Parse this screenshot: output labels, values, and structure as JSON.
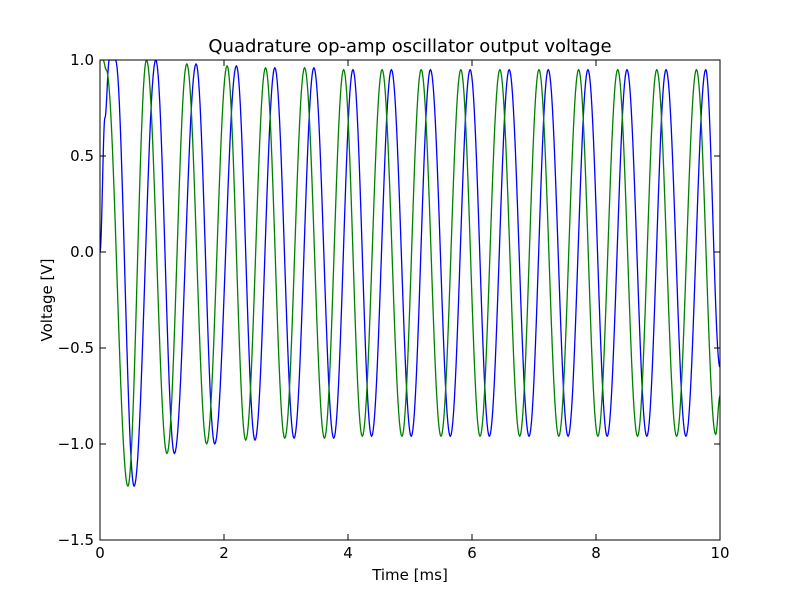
{
  "chart_data": {
    "type": "line",
    "title": "Quadrature op-amp oscillator output voltage",
    "xlabel": "Time [ms]",
    "ylabel": "Voltage [V]",
    "xlim": [
      0,
      10
    ],
    "ylim": [
      -1.5,
      1.0
    ],
    "x_ticks": [
      0,
      2,
      4,
      6,
      8,
      10
    ],
    "x_tick_labels": [
      "0",
      "2",
      "4",
      "6",
      "8",
      "10"
    ],
    "y_ticks": [
      1.0,
      0.5,
      0.0,
      -0.5,
      -1.0,
      -1.5
    ],
    "y_tick_labels": [
      "1.0",
      "0.5",
      "0.0",
      "−0.5",
      "−1.0",
      "−1.5"
    ],
    "grid": false,
    "legend": "none",
    "series": [
      {
        "color": "#0000ff",
        "x": [
          0.0,
          0.08,
          0.15,
          0.25,
          0.55,
          0.9,
          1.2,
          1.55,
          1.85,
          2.2,
          2.5,
          2.82,
          3.13,
          3.45,
          3.77,
          4.08,
          4.38,
          4.7,
          5.02,
          5.33,
          5.65,
          5.97,
          6.28,
          6.6,
          6.92,
          7.23,
          7.55,
          7.87,
          8.18,
          8.5,
          8.82,
          9.13,
          9.45,
          9.77,
          10.0
        ],
        "y": [
          0.0,
          0.7,
          1.0,
          1.0,
          -1.22,
          1.0,
          -1.05,
          0.98,
          -1.0,
          0.97,
          -0.98,
          0.96,
          -0.97,
          0.96,
          -0.97,
          0.95,
          -0.96,
          0.95,
          -0.96,
          0.95,
          -0.96,
          0.95,
          -0.96,
          0.95,
          -0.96,
          0.95,
          -0.96,
          0.95,
          -0.96,
          0.95,
          -0.96,
          0.95,
          -0.96,
          0.95,
          -0.6
        ]
      },
      {
        "color": "#008000",
        "x": [
          0.0,
          0.05,
          0.1,
          0.45,
          0.75,
          1.08,
          1.4,
          1.72,
          2.05,
          2.35,
          2.67,
          2.98,
          3.3,
          3.62,
          3.93,
          4.23,
          4.55,
          4.87,
          5.18,
          5.5,
          5.82,
          6.13,
          6.45,
          6.77,
          7.08,
          7.4,
          7.72,
          8.03,
          8.35,
          8.67,
          8.98,
          9.3,
          9.62,
          9.93,
          10.0
        ],
        "y": [
          1.0,
          1.0,
          0.95,
          -1.22,
          1.0,
          -1.05,
          0.98,
          -1.0,
          0.97,
          -0.98,
          0.96,
          -0.97,
          0.96,
          -0.97,
          0.95,
          -0.96,
          0.95,
          -0.96,
          0.95,
          -0.96,
          0.95,
          -0.96,
          0.95,
          -0.96,
          0.95,
          -0.96,
          0.95,
          -0.96,
          0.95,
          -0.96,
          0.95,
          -0.96,
          0.95,
          -0.95,
          -0.75
        ]
      }
    ]
  }
}
